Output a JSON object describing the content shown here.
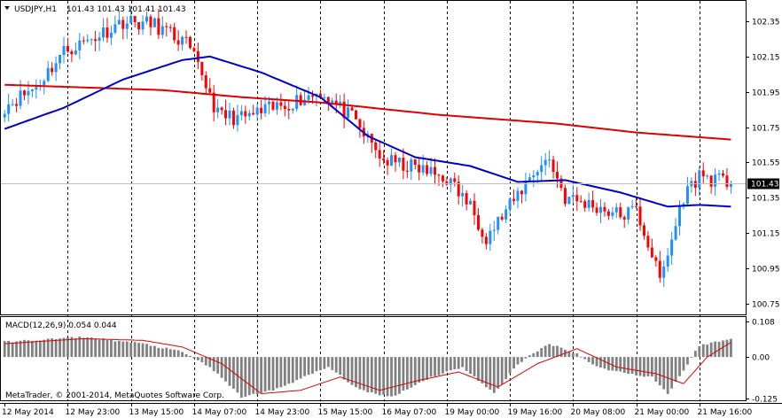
{
  "app": {
    "copyright": "MetaTrader, © 2001-2014, MetaQuotes Software Corp."
  },
  "main_panel": {
    "header_symbol": "USDJPY,H1",
    "header_ohlc": "101.43 101.43 101.41 101.43",
    "current_price_label": "101.43",
    "y_ticks": [
      "102.35",
      "102.15",
      "101.95",
      "101.75",
      "101.55",
      "101.35",
      "101.15",
      "100.95",
      "100.75"
    ]
  },
  "macd_panel": {
    "label": "MACD(12,26,9) 0.054 0.044",
    "y_ticks": [
      "0.108",
      "0.00",
      "-0.125"
    ]
  },
  "x_axis": {
    "ticks": [
      "12 May 2014",
      "12 May 23:00",
      "13 May 15:00",
      "14 May 07:00",
      "14 May 23:00",
      "15 May 15:00",
      "16 May 07:00",
      "19 May 00:00",
      "19 May 16:00",
      "20 May 08:00",
      "21 May 00:00",
      "21 May 16:00"
    ]
  },
  "colors": {
    "background": "#ffffff",
    "bull_candle": "#1e90ff",
    "bear_candle": "#ff0000",
    "ma_fast": "#0000cd",
    "ma_slow": "#e00000",
    "macd_hist": "#808080",
    "macd_signal": "#e00000",
    "grid": "#000000",
    "price_badge_bg": "#000000",
    "price_badge_fg": "#ffffff"
  },
  "chart_data": {
    "type": "candlestick",
    "symbol": "USDJPY",
    "timeframe": "H1",
    "candle_count": 185,
    "price_range": [
      100.69,
      102.46
    ],
    "current_price": 101.43,
    "price_path": [
      {
        "x": 0,
        "price": 101.87
      },
      {
        "x": 8,
        "price": 101.98
      },
      {
        "x": 15,
        "price": 102.18
      },
      {
        "x": 22,
        "price": 102.25
      },
      {
        "x": 30,
        "price": 102.35
      },
      {
        "x": 38,
        "price": 102.33
      },
      {
        "x": 46,
        "price": 102.22
      },
      {
        "x": 50,
        "price": 102.05
      },
      {
        "x": 54,
        "price": 101.82
      },
      {
        "x": 60,
        "price": 101.8
      },
      {
        "x": 70,
        "price": 101.87
      },
      {
        "x": 80,
        "price": 101.95
      },
      {
        "x": 88,
        "price": 101.8
      },
      {
        "x": 96,
        "price": 101.56
      },
      {
        "x": 104,
        "price": 101.52
      },
      {
        "x": 112,
        "price": 101.46
      },
      {
        "x": 118,
        "price": 101.3
      },
      {
        "x": 122,
        "price": 101.13
      },
      {
        "x": 128,
        "price": 101.3
      },
      {
        "x": 134,
        "price": 101.5
      },
      {
        "x": 138,
        "price": 101.57
      },
      {
        "x": 142,
        "price": 101.35
      },
      {
        "x": 150,
        "price": 101.3
      },
      {
        "x": 156,
        "price": 101.25
      },
      {
        "x": 160,
        "price": 101.28
      },
      {
        "x": 164,
        "price": 101.03
      },
      {
        "x": 166,
        "price": 100.88
      },
      {
        "x": 168,
        "price": 101.03
      },
      {
        "x": 172,
        "price": 101.36
      },
      {
        "x": 176,
        "price": 101.48
      },
      {
        "x": 180,
        "price": 101.45
      },
      {
        "x": 184,
        "price": 101.43
      }
    ],
    "ma_fast_path": [
      {
        "x": 0,
        "price": 101.74
      },
      {
        "x": 15,
        "price": 101.86
      },
      {
        "x": 30,
        "price": 102.02
      },
      {
        "x": 45,
        "price": 102.13
      },
      {
        "x": 52,
        "price": 102.15
      },
      {
        "x": 65,
        "price": 102.06
      },
      {
        "x": 80,
        "price": 101.92
      },
      {
        "x": 92,
        "price": 101.7
      },
      {
        "x": 104,
        "price": 101.58
      },
      {
        "x": 118,
        "price": 101.53
      },
      {
        "x": 130,
        "price": 101.44
      },
      {
        "x": 142,
        "price": 101.45
      },
      {
        "x": 156,
        "price": 101.38
      },
      {
        "x": 168,
        "price": 101.3
      },
      {
        "x": 176,
        "price": 101.31
      },
      {
        "x": 184,
        "price": 101.3
      }
    ],
    "ma_slow_path": [
      {
        "x": 0,
        "price": 101.99
      },
      {
        "x": 40,
        "price": 101.96
      },
      {
        "x": 60,
        "price": 101.92
      },
      {
        "x": 80,
        "price": 101.89
      },
      {
        "x": 110,
        "price": 101.82
      },
      {
        "x": 140,
        "price": 101.77
      },
      {
        "x": 160,
        "price": 101.72
      },
      {
        "x": 184,
        "price": 101.68
      }
    ],
    "macd": {
      "name": "MACD(12,26,9)",
      "main": 0.054,
      "signal": 0.044,
      "range": [
        -0.13,
        0.12
      ],
      "hist_path": [
        {
          "x": 0,
          "value": 0.045
        },
        {
          "x": 20,
          "value": 0.06
        },
        {
          "x": 35,
          "value": 0.04
        },
        {
          "x": 45,
          "value": 0.015
        },
        {
          "x": 52,
          "value": -0.03
        },
        {
          "x": 60,
          "value": -0.12
        },
        {
          "x": 68,
          "value": -0.1
        },
        {
          "x": 76,
          "value": -0.06
        },
        {
          "x": 82,
          "value": -0.03
        },
        {
          "x": 90,
          "value": -0.1
        },
        {
          "x": 98,
          "value": -0.12
        },
        {
          "x": 108,
          "value": -0.06
        },
        {
          "x": 116,
          "value": -0.03
        },
        {
          "x": 124,
          "value": -0.11
        },
        {
          "x": 130,
          "value": -0.02
        },
        {
          "x": 138,
          "value": 0.04
        },
        {
          "x": 145,
          "value": 0.01
        },
        {
          "x": 150,
          "value": -0.03
        },
        {
          "x": 158,
          "value": -0.05
        },
        {
          "x": 164,
          "value": -0.06
        },
        {
          "x": 168,
          "value": -0.11
        },
        {
          "x": 172,
          "value": -0.04
        },
        {
          "x": 176,
          "value": 0.035
        },
        {
          "x": 184,
          "value": 0.054
        }
      ],
      "signal_path": [
        {
          "x": 0,
          "value": 0.04
        },
        {
          "x": 20,
          "value": 0.055
        },
        {
          "x": 35,
          "value": 0.05
        },
        {
          "x": 45,
          "value": 0.03
        },
        {
          "x": 55,
          "value": -0.02
        },
        {
          "x": 65,
          "value": -0.11
        },
        {
          "x": 75,
          "value": -0.1
        },
        {
          "x": 85,
          "value": -0.06
        },
        {
          "x": 95,
          "value": -0.1
        },
        {
          "x": 105,
          "value": -0.07
        },
        {
          "x": 115,
          "value": -0.045
        },
        {
          "x": 125,
          "value": -0.09
        },
        {
          "x": 135,
          "value": -0.02
        },
        {
          "x": 145,
          "value": 0.025
        },
        {
          "x": 155,
          "value": -0.03
        },
        {
          "x": 165,
          "value": -0.05
        },
        {
          "x": 172,
          "value": -0.08
        },
        {
          "x": 178,
          "value": 0.0
        },
        {
          "x": 184,
          "value": 0.044
        }
      ]
    }
  }
}
